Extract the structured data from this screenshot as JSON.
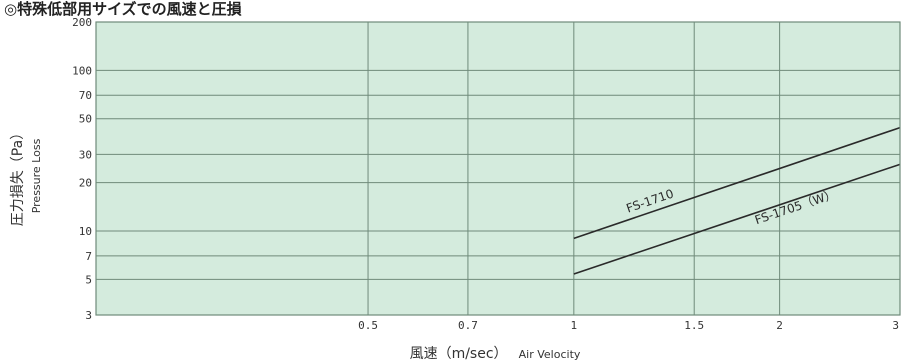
{
  "header": {
    "title": "◎特殊低部用サイズでの風速と圧損"
  },
  "chart_data": {
    "type": "line",
    "title": "◎特殊低部用サイズでの風速と圧損",
    "xlabel": "風速（m/sec）",
    "xlabel_en": "Air Velocity",
    "ylabel": "圧力損失（Pa）",
    "ylabel_en": "Pressure Loss",
    "x_scale": "log",
    "y_scale": "log",
    "xlim": [
      0.2,
      3
    ],
    "ylim": [
      3,
      200
    ],
    "x_ticks": [
      0.5,
      0.7,
      1,
      1.5,
      2,
      3
    ],
    "x_tick_labels": [
      "0.5",
      "0.7",
      "1",
      "1.5",
      "2",
      "3"
    ],
    "y_ticks": [
      3,
      5,
      7,
      10,
      20,
      30,
      50,
      70,
      100,
      200
    ],
    "y_tick_labels": [
      "3",
      "5",
      "7",
      "10",
      "20",
      "30",
      "50",
      "70",
      "100",
      "200"
    ],
    "grid": true,
    "colors": {
      "plot_bg": "#d4ebdd",
      "grid": "#6f8a7a",
      "line": "#2a2a2a"
    },
    "series": [
      {
        "name": "FS-1710",
        "x": [
          1,
          3
        ],
        "y": [
          9,
          44
        ],
        "label_at": [
          1.2,
          13
        ]
      },
      {
        "name": "FS-1705（W）",
        "x": [
          1,
          3
        ],
        "y": [
          5.4,
          26
        ],
        "label_at": [
          1.85,
          11
        ]
      }
    ]
  }
}
